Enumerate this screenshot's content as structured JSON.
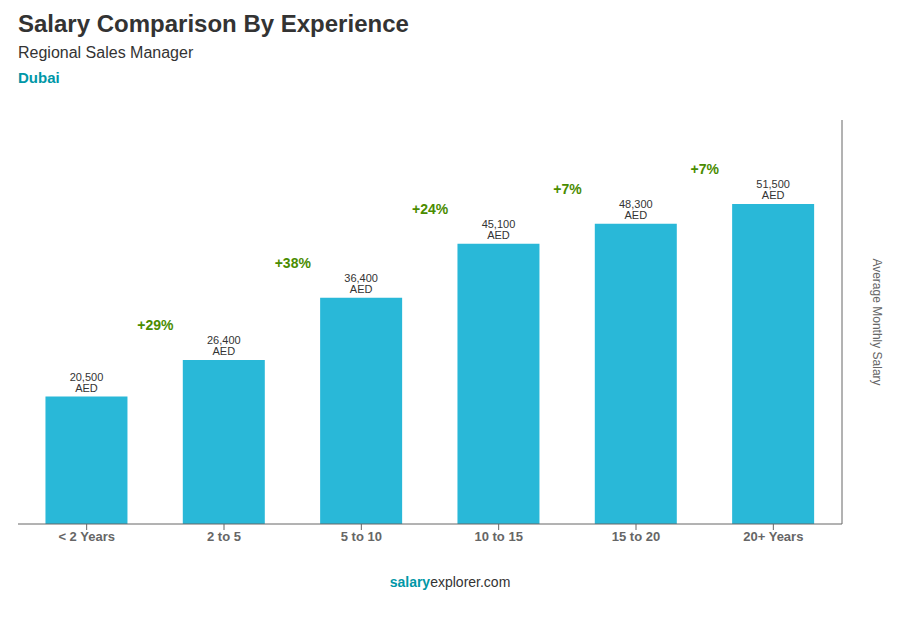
{
  "chart_data": {
    "type": "bar",
    "title": "Salary Comparison By Experience",
    "subtitle": "Regional Sales Manager",
    "city": "Dubai",
    "ylabel": "Average Monthly Salary",
    "footer": [
      "salary",
      "explorer.com"
    ],
    "categories": [
      "< 2 Years",
      "2 to 5",
      "5 to 10",
      "10 to 15",
      "15 to 20",
      "20+ Years"
    ],
    "values": [
      20500,
      26400,
      36400,
      45100,
      48300,
      51500
    ],
    "value_labels": [
      "20,500 AED",
      "26,400 AED",
      "36,400 AED",
      "45,100 AED",
      "48,300 AED",
      "51,500 AED"
    ],
    "annotations": [
      "+29%",
      "+38%",
      "+24%",
      "+7%",
      "+7%"
    ],
    "color": "#29b8d8",
    "ylim": [
      0,
      65000
    ],
    "data_labels": true,
    "tick_labels": "x",
    "grid": false
  }
}
